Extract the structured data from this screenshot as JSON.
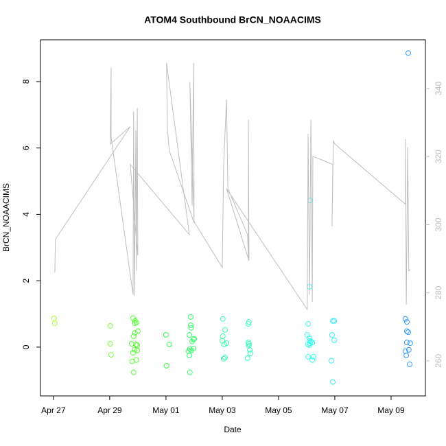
{
  "chart_data": {
    "type": "scatter",
    "title": "ATOM4 Southbound BrCN_NOAACIMS",
    "x_label": "Date",
    "y_label": "BrCN_NOAACIMS",
    "xlim": [
      -0.46,
      13.22
    ],
    "xticks": [
      {
        "value": 0,
        "label": "Apr 27"
      },
      {
        "value": 2,
        "label": "Apr 29"
      },
      {
        "value": 4,
        "label": "May 01"
      },
      {
        "value": 6,
        "label": "May 03"
      },
      {
        "value": 8,
        "label": "May 05"
      },
      {
        "value": 10,
        "label": "May 07"
      },
      {
        "value": 12,
        "label": "May 09"
      }
    ],
    "ylim": [
      -1.47,
      9.26
    ],
    "yticks": [
      0,
      2,
      4,
      6,
      8
    ],
    "y2lim": [
      249.7,
      354.3
    ],
    "y2ticks": [
      260,
      280,
      300,
      320,
      340
    ],
    "series": [
      {
        "color": "#aaff33",
        "x": [
          0.02,
          0.05
        ],
        "values": [
          0.87,
          0.72
        ]
      },
      {
        "color": "#77ff33",
        "x": [
          2.02,
          2.02,
          2.05
        ],
        "values": [
          0.64,
          0.1,
          -0.23
        ]
      },
      {
        "color": "#55ff33",
        "x": [
          2.83,
          2.9,
          2.95,
          2.9,
          3.0,
          2.85,
          2.9,
          2.78,
          2.93,
          2.98,
          2.88,
          2.83,
          2.98,
          2.8,
          2.95,
          2.85
        ],
        "values": [
          0.87,
          0.79,
          0.74,
          0.72,
          0.48,
          0.33,
          0.43,
          0.1,
          0.08,
          0.06,
          -0.08,
          -0.17,
          -0.1,
          -0.43,
          -0.39,
          -0.76
        ]
      },
      {
        "color": "#33ff44",
        "x": [
          4.0,
          4.12,
          4.02
        ],
        "values": [
          0.37,
          0.08,
          -0.56
        ]
      },
      {
        "color": "#33ff66",
        "x": [
          4.88,
          4.88,
          4.9,
          4.83,
          4.98,
          5.0,
          4.93,
          4.85,
          4.8,
          4.9,
          4.98,
          4.83,
          4.85
        ],
        "values": [
          0.91,
          0.66,
          0.58,
          0.37,
          0.23,
          0.25,
          0.17,
          -0.06,
          -0.12,
          -0.1,
          -0.04,
          -0.25,
          -0.76
        ]
      },
      {
        "color": "#33ffaa",
        "x": [
          6.02,
          6.1,
          6.02,
          6.0,
          6.15,
          6.07,
          6.1,
          6.05
        ],
        "values": [
          0.85,
          0.52,
          0.33,
          0.19,
          0.12,
          0.08,
          -0.31,
          -0.35
        ]
      },
      {
        "color": "#33ffbb",
        "x": [
          6.95,
          6.93,
          6.93,
          6.95,
          6.95,
          6.98,
          7.0,
          6.9
        ],
        "values": [
          0.76,
          0.7,
          0.14,
          0.1,
          0.04,
          -0.08,
          -0.19,
          -0.33
        ]
      },
      {
        "color": "#33ffee",
        "x": [
          9.05,
          9.02,
          9.1,
          9.1,
          9.15,
          9.2,
          9.12,
          9.05,
          9.1,
          9.24,
          9.05,
          9.2,
          9.12,
          9.1
        ],
        "values": [
          0.7,
          0.37,
          0.27,
          0.19,
          0.17,
          0.14,
          0.12,
          0.08,
          0.06,
          -0.29,
          -0.29,
          -0.39,
          4.42,
          1.82
        ]
      },
      {
        "color": "#33eeff",
        "x": [
          9.93,
          9.98,
          9.9,
          9.98,
          9.88,
          9.93
        ],
        "values": [
          0.79,
          0.79,
          0.37,
          0.21,
          -0.41,
          -1.05
        ]
      },
      {
        "color": "#3399ff",
        "x": [
          12.61,
          12.51,
          12.56,
          12.56,
          12.61,
          12.56,
          12.68,
          12.51,
          12.63,
          12.54,
          12.66
        ],
        "values": [
          8.86,
          0.85,
          0.76,
          0.48,
          0.45,
          0.14,
          0.12,
          -0.12,
          -0.08,
          -0.25,
          -0.52
        ]
      },
      {
        "type": "line",
        "axis": "y2",
        "color": "#bebebe",
        "x": [
          0.05,
          0.07,
          2.73,
          2.02,
          2.05,
          2.05,
          2.83,
          2.85,
          2.88,
          2.93,
          2.95,
          2.98,
          3.0,
          2.73,
          4.83,
          4.02,
          4.05,
          4.12,
          5.0,
          4.85,
          4.93,
          4.98,
          5.0,
          6.0,
          6.05,
          6.15,
          6.2,
          6.9,
          6.93,
          6.93,
          6.95,
          6.15,
          9.02,
          9.05,
          9.1,
          9.15,
          9.2,
          9.22,
          9.93,
          9.9,
          9.95,
          10.0,
          12.51,
          12.51,
          12.54,
          12.59,
          12.63,
          12.68
        ],
        "values": [
          286.0,
          295.7,
          328.8,
          323.7,
          346.1,
          325.7,
          279.4,
          333.2,
          279.0,
          327.7,
          286.4,
          334.2,
          291.0,
          317.7,
          297.1,
          347.5,
          328.1,
          321.7,
          300.5,
          341.9,
          305.6,
          347.5,
          300.9,
          287.4,
          317.7,
          336.8,
          310.6,
          297.1,
          289.8,
          330.8,
          289.4,
          310.6,
          275.1,
          326.7,
          279.4,
          330.8,
          277.3,
          320.1,
          317.7,
          299.5,
          324.7,
          323.7,
          306.0,
          325.1,
          276.5,
          322.7,
          286.4,
          286.8
        ]
      }
    ]
  }
}
